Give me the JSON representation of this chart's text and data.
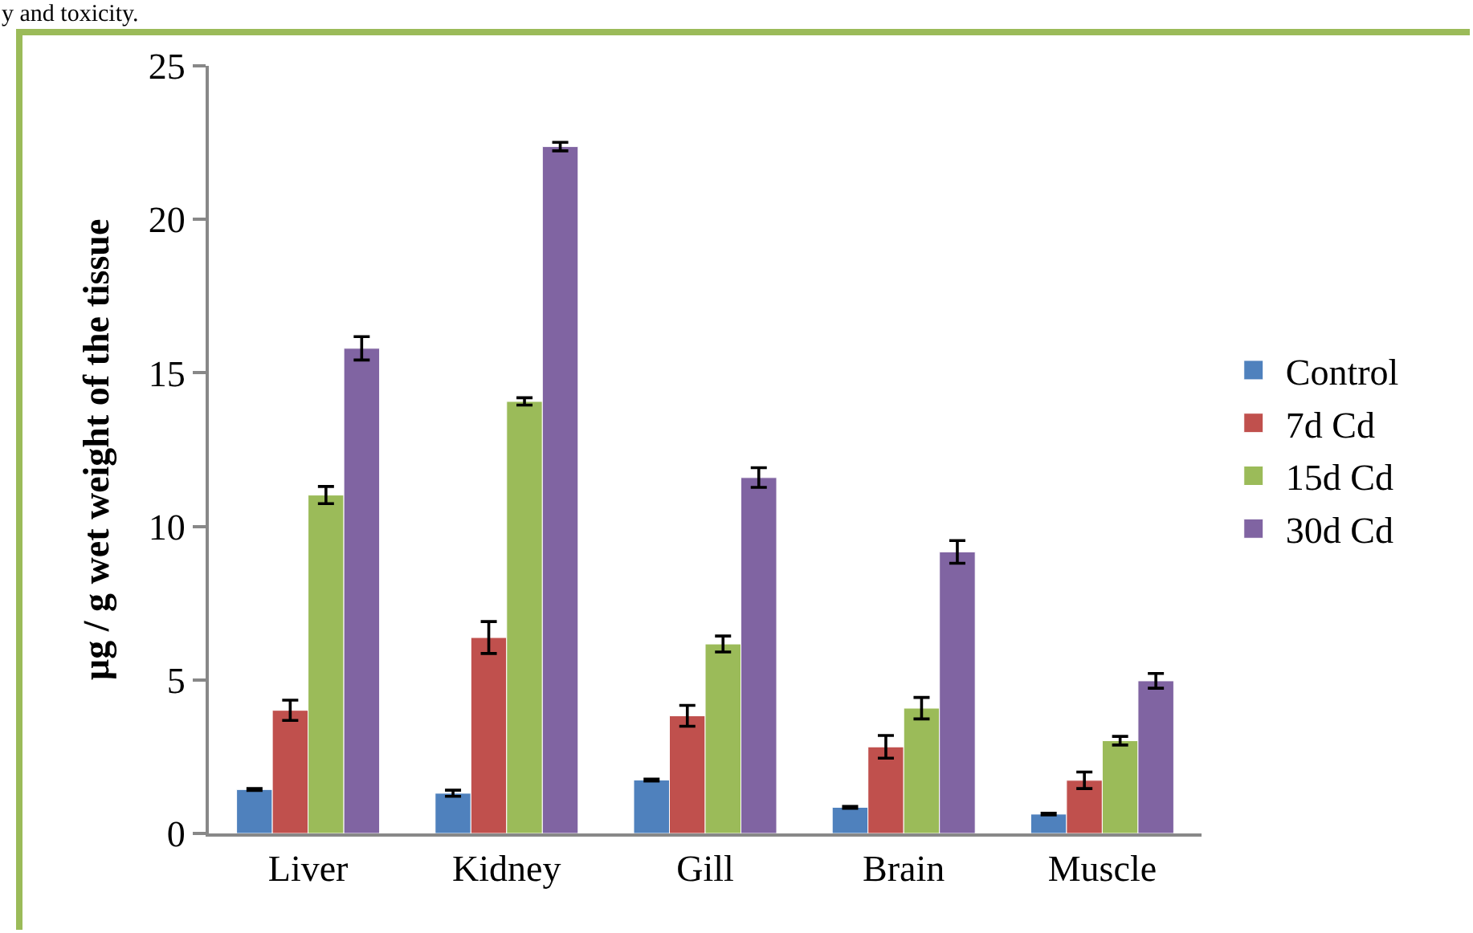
{
  "chart_data": {
    "type": "bar",
    "ylabel": "µg / g wet weight of the tissue",
    "annotations": [
      "y and toxicity."
    ],
    "categories": [
      "Liver",
      "Kidney",
      "Gill",
      "Brain",
      "Muscle"
    ],
    "series": [
      {
        "name": "Control",
        "color": "#4f81bd",
        "values": [
          1.43,
          1.31,
          1.74,
          0.85,
          0.63
        ],
        "errors": [
          0.03,
          0.1,
          0.03,
          0.03,
          0.03
        ]
      },
      {
        "name": "7d Cd",
        "color": "#c0504d",
        "values": [
          4.01,
          6.38,
          3.83,
          2.82,
          1.73
        ],
        "errors": [
          0.33,
          0.52,
          0.34,
          0.37,
          0.27
        ]
      },
      {
        "name": "15d Cd",
        "color": "#9bbb59",
        "values": [
          11.02,
          14.07,
          6.17,
          4.08,
          3.02
        ],
        "errors": [
          0.28,
          0.12,
          0.26,
          0.35,
          0.14
        ]
      },
      {
        "name": "30d Cd",
        "color": "#8064a2",
        "values": [
          15.8,
          22.37,
          11.59,
          9.17,
          4.97
        ],
        "errors": [
          0.38,
          0.14,
          0.32,
          0.37,
          0.24
        ]
      }
    ],
    "ylim": [
      0,
      25
    ],
    "yticks": [
      0,
      5,
      10,
      15,
      20,
      25
    ],
    "grid": false,
    "legend": "right"
  }
}
